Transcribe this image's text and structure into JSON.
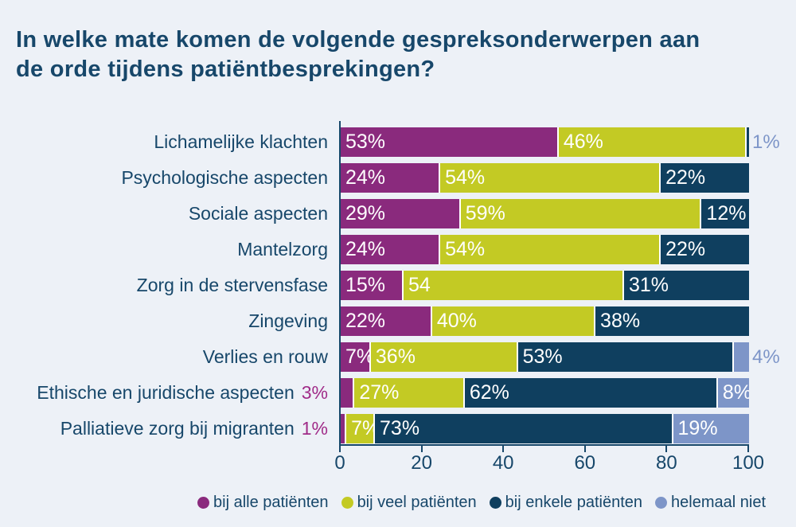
{
  "title": {
    "line1": "In welke mate komen de volgende gespreksonderwerpen aan",
    "line2": "de orde tijdens patiëntbesprekingen?"
  },
  "colors": {
    "background": "#edf1f7",
    "text": "#17476a",
    "axis": "#17476a",
    "segment_gap": "#ffffff",
    "inside_label": "#ffffff"
  },
  "chart_data": {
    "type": "bar",
    "stacked": true,
    "orientation": "horizontal",
    "title": "In welke mate komen de volgende gespreksonderwerpen aan de orde tijdens patiëntbesprekingen?",
    "xlim": [
      0,
      100
    ],
    "x_ticks": [
      "0",
      "20",
      "40",
      "60",
      "80",
      "100"
    ],
    "grid": false,
    "legend_position": "bottom",
    "series": [
      {
        "name": "bij alle patiënten",
        "color": "#8a2a7d"
      },
      {
        "name": "bij veel patiënten",
        "color": "#c3ca24"
      },
      {
        "name": "bij enkele patiënten",
        "color": "#0f3f5f"
      },
      {
        "name": "helemaal niet",
        "color": "#7d95c8"
      }
    ],
    "outside_label_colors": {
      "left": "#a02b88",
      "right": "#7d95c8"
    },
    "rows": [
      {
        "category": "Lichamelijke klachten",
        "segments": [
          {
            "series": 0,
            "value": 53,
            "label": "53%",
            "placement": "in"
          },
          {
            "series": 1,
            "value": 46,
            "label": "46%",
            "placement": "in"
          },
          {
            "series": 2,
            "value": 1,
            "label": "1%",
            "placement": "right"
          }
        ]
      },
      {
        "category": "Psychologische aspecten",
        "segments": [
          {
            "series": 0,
            "value": 24,
            "label": "24%",
            "placement": "in"
          },
          {
            "series": 1,
            "value": 54,
            "label": "54%",
            "placement": "in"
          },
          {
            "series": 2,
            "value": 22,
            "label": "22%",
            "placement": "in"
          }
        ]
      },
      {
        "category": "Sociale aspecten",
        "segments": [
          {
            "series": 0,
            "value": 29,
            "label": "29%",
            "placement": "in"
          },
          {
            "series": 1,
            "value": 59,
            "label": "59%",
            "placement": "in"
          },
          {
            "series": 2,
            "value": 12,
            "label": "12%",
            "placement": "in"
          }
        ]
      },
      {
        "category": "Mantelzorg",
        "segments": [
          {
            "series": 0,
            "value": 24,
            "label": "24%",
            "placement": "in"
          },
          {
            "series": 1,
            "value": 54,
            "label": "54%",
            "placement": "in"
          },
          {
            "series": 2,
            "value": 22,
            "label": "22%",
            "placement": "in"
          }
        ]
      },
      {
        "category": "Zorg in de stervensfase",
        "segments": [
          {
            "series": 0,
            "value": 15,
            "label": "15%",
            "placement": "in"
          },
          {
            "series": 1,
            "value": 54,
            "label": "54",
            "placement": "in"
          },
          {
            "series": 2,
            "value": 31,
            "label": "31%",
            "placement": "in"
          }
        ]
      },
      {
        "category": "Zingeving",
        "segments": [
          {
            "series": 0,
            "value": 22,
            "label": "22%",
            "placement": "in"
          },
          {
            "series": 1,
            "value": 40,
            "label": "40%",
            "placement": "in"
          },
          {
            "series": 2,
            "value": 38,
            "label": "38%",
            "placement": "in"
          }
        ]
      },
      {
        "category": "Verlies en rouw",
        "segments": [
          {
            "series": 0,
            "value": 7,
            "label": "7%",
            "placement": "in"
          },
          {
            "series": 1,
            "value": 36,
            "label": "36%",
            "placement": "in"
          },
          {
            "series": 2,
            "value": 53,
            "label": "53%",
            "placement": "in"
          },
          {
            "series": 3,
            "value": 4,
            "label": "4%",
            "placement": "right"
          }
        ]
      },
      {
        "category": "Ethische en juridische aspecten",
        "segments": [
          {
            "series": 0,
            "value": 3,
            "label": "3%",
            "placement": "left"
          },
          {
            "series": 1,
            "value": 27,
            "label": "27%",
            "placement": "in"
          },
          {
            "series": 2,
            "value": 62,
            "label": "62%",
            "placement": "in"
          },
          {
            "series": 3,
            "value": 8,
            "label": "8%",
            "placement": "in"
          }
        ]
      },
      {
        "category": "Palliatieve zorg bij migranten",
        "segments": [
          {
            "series": 0,
            "value": 1,
            "label": "1%",
            "placement": "left"
          },
          {
            "series": 1,
            "value": 7,
            "label": "7%",
            "placement": "in"
          },
          {
            "series": 2,
            "value": 73,
            "label": "73%",
            "placement": "in"
          },
          {
            "series": 3,
            "value": 19,
            "label": "19%",
            "placement": "in"
          }
        ]
      }
    ]
  }
}
